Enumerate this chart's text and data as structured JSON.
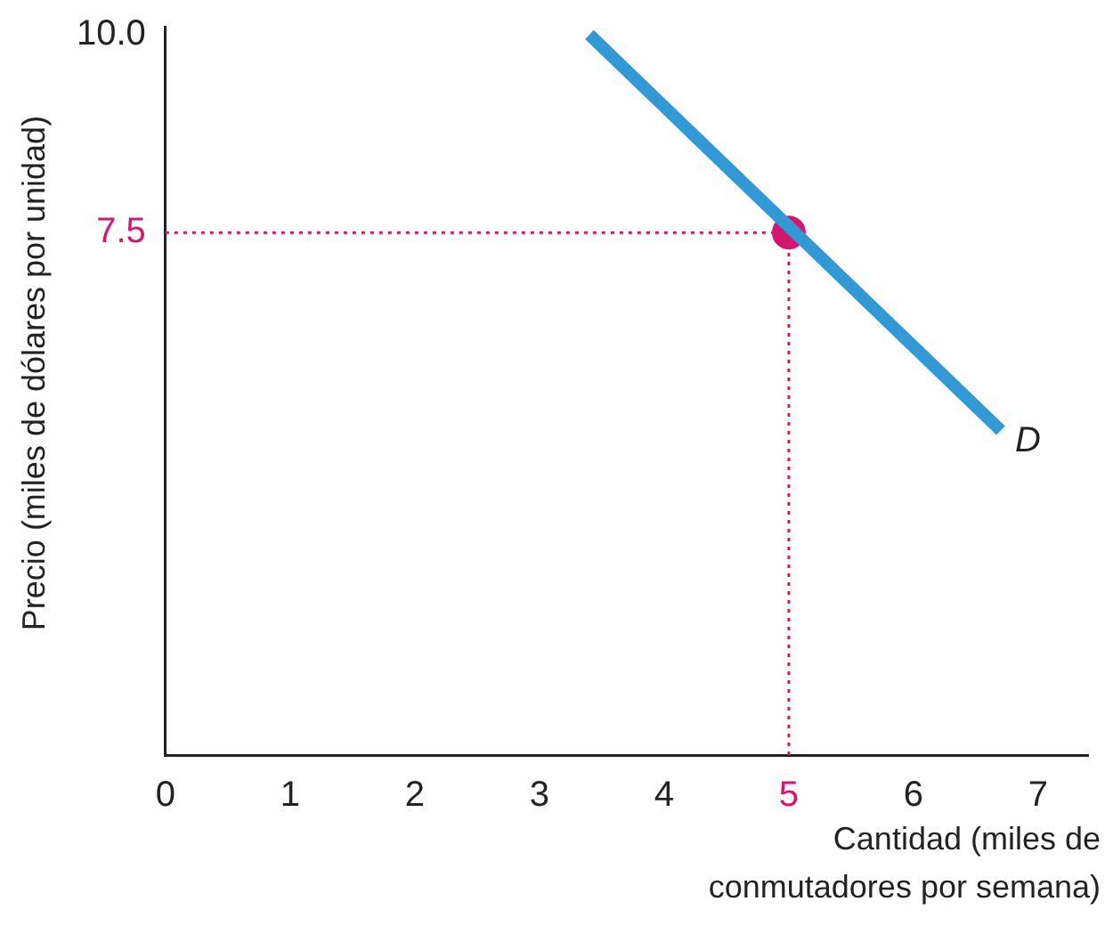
{
  "chart_data": {
    "type": "line",
    "xlabel": "Cantidad (miles de conmutadores por semana)",
    "ylabel": "Precio (miles de dólares por unidad)",
    "series": [
      {
        "name": null,
        "type": "line",
        "color": "#3399d6",
        "x": [
          3.4,
          6.7
        ],
        "values": [
          10.0,
          5.0
        ]
      },
      {
        "type": "scatter",
        "color": "#d4166e",
        "x": [
          5
        ],
        "values": [
          7.5
        ]
      }
    ],
    "xlim": [
      0,
      7.4
    ],
    "xticks": [
      0,
      1,
      2,
      3,
      4,
      5,
      6,
      7
    ],
    "ylim": [
      0.9,
      10.1
    ],
    "yticks": [
      {
        "value": 7.5,
        "label": "7.5"
      },
      {
        "value": 10,
        "label": "10.0"
      }
    ],
    "ref_lines": [
      {
        "axis": "x",
        "value": 5,
        "color": "#d4166e",
        "line_style": "dotted"
      },
      {
        "axis": "y",
        "value": 7.5,
        "color": "#d4166e",
        "line_style": "dotted"
      }
    ],
    "annotations": [
      {
        "text": "D",
        "x": 6.7,
        "y": 5.0
      }
    ],
    "grid": false,
    "legend": false
  }
}
